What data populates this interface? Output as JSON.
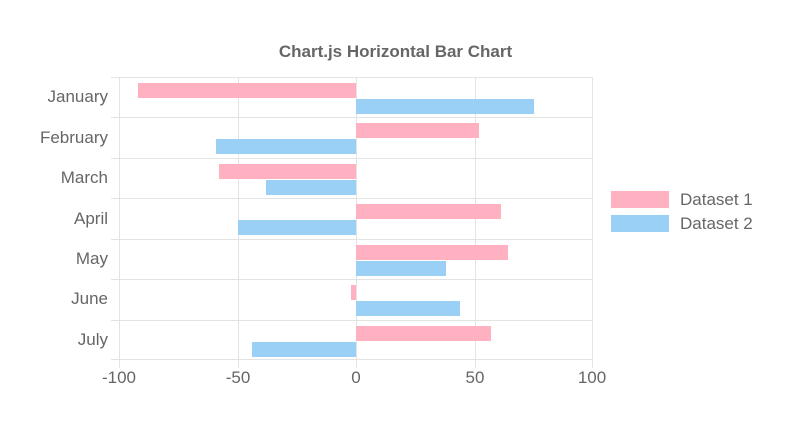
{
  "chart_data": {
    "type": "bar",
    "orientation": "horizontal",
    "title": "Chart.js Horizontal Bar Chart",
    "categories": [
      "January",
      "February",
      "March",
      "April",
      "May",
      "June",
      "July"
    ],
    "series": [
      {
        "name": "Dataset 1",
        "color": "#ffb1c1",
        "values": [
          -92,
          52,
          -58,
          61,
          64,
          -2,
          57
        ]
      },
      {
        "name": "Dataset 2",
        "color": "#9ad0f5",
        "values": [
          75,
          -59,
          -38,
          -50,
          38,
          44,
          -44
        ]
      }
    ],
    "xlim": [
      -100,
      100
    ],
    "x_ticks": [
      -100,
      -50,
      0,
      50,
      100
    ],
    "grid": true,
    "legend_position": "right",
    "colors": {
      "text": "#666666",
      "grid": "#e3e3e3"
    }
  }
}
